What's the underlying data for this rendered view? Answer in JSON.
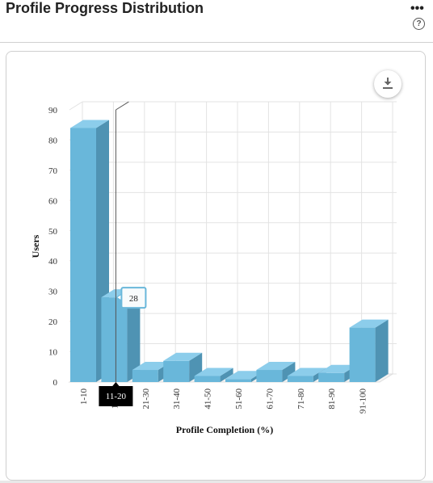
{
  "header": {
    "title": "Profile Progress Distribution"
  },
  "icons": {
    "more": "more-options-icon",
    "help": "help-icon",
    "download": "download-icon"
  },
  "colors": {
    "bar_front": "#69b7da",
    "bar_side": "#4f93b3",
    "bar_top": "#8ccdeb",
    "tooltip_border": "#69b7da"
  },
  "chart_data": {
    "type": "bar",
    "title": "",
    "xlabel": "Profile Completion (%)",
    "ylabel": "Users",
    "ylim": [
      0,
      90
    ],
    "yticks": [
      0,
      10,
      20,
      30,
      40,
      50,
      60,
      70,
      80,
      90
    ],
    "categories": [
      "1-10",
      "11-20",
      "21-30",
      "31-40",
      "41-50",
      "51-60",
      "61-70",
      "71-80",
      "81-90",
      "91-100"
    ],
    "values": [
      84,
      28,
      4,
      7,
      2,
      1,
      4,
      2,
      3,
      18
    ],
    "grid": true,
    "tooltip": {
      "category": "11-20",
      "value": "28"
    }
  }
}
